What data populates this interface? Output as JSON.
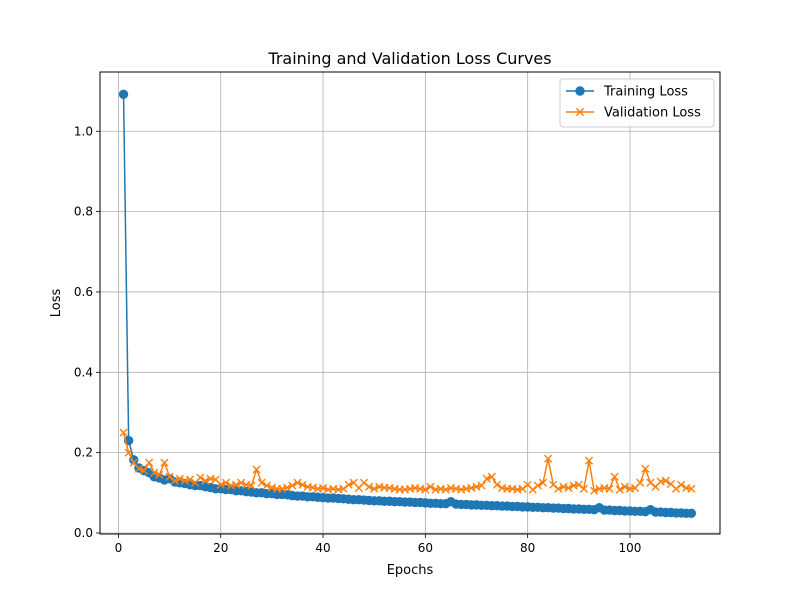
{
  "chart_data": {
    "type": "line",
    "title": "Training and Validation Loss Curves",
    "xlabel": "Epochs",
    "ylabel": "Loss",
    "xlim": [
      -3.6,
      117.6
    ],
    "ylim": [
      -0.0025,
      1.1475
    ],
    "xticks": [
      0,
      20,
      40,
      60,
      80,
      100
    ],
    "yticks": [
      0.0,
      0.2,
      0.4,
      0.6,
      0.8,
      1.0
    ],
    "xtick_labels": [
      "0",
      "20",
      "40",
      "60",
      "80",
      "100"
    ],
    "ytick_labels": [
      "0.0",
      "0.2",
      "0.4",
      "0.6",
      "0.8",
      "1.0"
    ],
    "grid": true,
    "legend_position": "top-right",
    "series": [
      {
        "name": "Training Loss",
        "color": "#1f77b4",
        "marker": "circle",
        "x": [
          1,
          2,
          3,
          4,
          5,
          6,
          7,
          8,
          9,
          10,
          11,
          12,
          13,
          14,
          15,
          16,
          17,
          18,
          19,
          20,
          21,
          22,
          23,
          24,
          25,
          26,
          27,
          28,
          29,
          30,
          31,
          32,
          33,
          34,
          35,
          36,
          37,
          38,
          39,
          40,
          41,
          42,
          43,
          44,
          45,
          46,
          47,
          48,
          49,
          50,
          51,
          52,
          53,
          54,
          55,
          56,
          57,
          58,
          59,
          60,
          61,
          62,
          63,
          64,
          65,
          66,
          67,
          68,
          69,
          70,
          71,
          72,
          73,
          74,
          75,
          76,
          77,
          78,
          79,
          80,
          81,
          82,
          83,
          84,
          85,
          86,
          87,
          88,
          89,
          90,
          91,
          92,
          93,
          94,
          95,
          96,
          97,
          98,
          99,
          100,
          101,
          102,
          103,
          104,
          105,
          106,
          107,
          108,
          109,
          110,
          111,
          112
        ],
        "values": [
          1.092,
          0.23,
          0.182,
          0.162,
          0.155,
          0.15,
          0.14,
          0.137,
          0.132,
          0.135,
          0.127,
          0.125,
          0.123,
          0.12,
          0.118,
          0.118,
          0.115,
          0.113,
          0.11,
          0.11,
          0.108,
          0.108,
          0.105,
          0.105,
          0.103,
          0.102,
          0.1,
          0.1,
          0.098,
          0.098,
          0.096,
          0.096,
          0.095,
          0.093,
          0.092,
          0.092,
          0.09,
          0.09,
          0.089,
          0.088,
          0.087,
          0.087,
          0.086,
          0.085,
          0.084,
          0.083,
          0.083,
          0.082,
          0.081,
          0.08,
          0.08,
          0.079,
          0.079,
          0.078,
          0.078,
          0.077,
          0.077,
          0.076,
          0.076,
          0.075,
          0.074,
          0.074,
          0.073,
          0.073,
          0.078,
          0.072,
          0.071,
          0.071,
          0.07,
          0.07,
          0.069,
          0.069,
          0.068,
          0.068,
          0.067,
          0.067,
          0.066,
          0.066,
          0.065,
          0.065,
          0.064,
          0.064,
          0.063,
          0.063,
          0.062,
          0.062,
          0.061,
          0.061,
          0.06,
          0.06,
          0.059,
          0.059,
          0.058,
          0.063,
          0.057,
          0.057,
          0.056,
          0.056,
          0.055,
          0.055,
          0.054,
          0.054,
          0.053,
          0.058,
          0.052,
          0.052,
          0.051,
          0.051,
          0.05,
          0.05,
          0.049,
          0.049
        ]
      },
      {
        "name": "Validation Loss",
        "color": "#ff7f0e",
        "marker": "x",
        "x": [
          1,
          2,
          3,
          4,
          5,
          6,
          7,
          8,
          9,
          10,
          11,
          12,
          13,
          14,
          15,
          16,
          17,
          18,
          19,
          20,
          21,
          22,
          23,
          24,
          25,
          26,
          27,
          28,
          29,
          30,
          31,
          32,
          33,
          34,
          35,
          36,
          37,
          38,
          39,
          40,
          41,
          42,
          43,
          44,
          45,
          46,
          47,
          48,
          49,
          50,
          51,
          52,
          53,
          54,
          55,
          56,
          57,
          58,
          59,
          60,
          61,
          62,
          63,
          64,
          65,
          66,
          67,
          68,
          69,
          70,
          71,
          72,
          73,
          74,
          75,
          76,
          77,
          78,
          79,
          80,
          81,
          82,
          83,
          84,
          85,
          86,
          87,
          88,
          89,
          90,
          91,
          92,
          93,
          94,
          95,
          96,
          97,
          98,
          99,
          100,
          101,
          102,
          103,
          104,
          105,
          106,
          107,
          108,
          109,
          110,
          111,
          112
        ],
        "values": [
          0.25,
          0.2,
          0.175,
          0.16,
          0.155,
          0.175,
          0.15,
          0.145,
          0.175,
          0.14,
          0.13,
          0.135,
          0.13,
          0.133,
          0.125,
          0.138,
          0.13,
          0.135,
          0.133,
          0.12,
          0.125,
          0.118,
          0.12,
          0.125,
          0.12,
          0.118,
          0.158,
          0.125,
          0.118,
          0.113,
          0.11,
          0.11,
          0.113,
          0.118,
          0.125,
          0.12,
          0.115,
          0.113,
          0.11,
          0.112,
          0.108,
          0.11,
          0.108,
          0.11,
          0.12,
          0.125,
          0.112,
          0.125,
          0.115,
          0.11,
          0.115,
          0.113,
          0.112,
          0.11,
          0.108,
          0.108,
          0.11,
          0.112,
          0.11,
          0.108,
          0.115,
          0.108,
          0.11,
          0.108,
          0.112,
          0.11,
          0.108,
          0.11,
          0.112,
          0.115,
          0.118,
          0.135,
          0.14,
          0.12,
          0.112,
          0.11,
          0.11,
          0.108,
          0.11,
          0.12,
          0.108,
          0.118,
          0.125,
          0.185,
          0.12,
          0.11,
          0.115,
          0.112,
          0.118,
          0.12,
          0.11,
          0.18,
          0.105,
          0.11,
          0.112,
          0.11,
          0.14,
          0.108,
          0.115,
          0.11,
          0.112,
          0.125,
          0.16,
          0.125,
          0.115,
          0.128,
          0.13,
          0.122,
          0.11,
          0.12,
          0.112,
          0.11
        ]
      }
    ]
  }
}
